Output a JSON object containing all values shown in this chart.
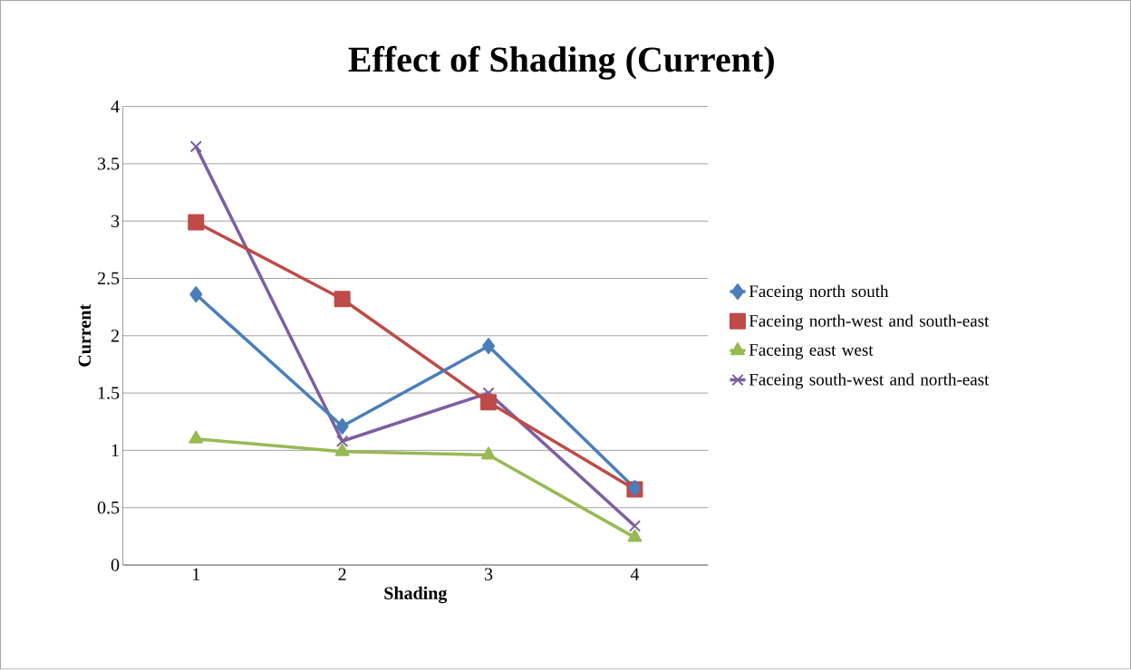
{
  "chart_data": {
    "type": "line",
    "title": "Effect of Shading (Current)",
    "xlabel": "Shading",
    "ylabel": "Current",
    "categories": [
      "1",
      "2",
      "3",
      "4"
    ],
    "series": [
      {
        "name": "Faceing north south",
        "color": "#4a7ebb",
        "marker": "diamond",
        "values": [
          2.36,
          1.21,
          1.91,
          0.67
        ]
      },
      {
        "name": "Faceing north-west and south-east",
        "color": "#be4b48",
        "marker": "square",
        "values": [
          2.99,
          2.32,
          1.42,
          0.66
        ]
      },
      {
        "name": "Faceing east west",
        "color": "#98b954",
        "marker": "triangle",
        "values": [
          1.1,
          0.99,
          0.96,
          0.24
        ]
      },
      {
        "name": "Faceing south-west and north-east",
        "color": "#7d5fa0",
        "marker": "cross",
        "values": [
          3.65,
          1.08,
          1.5,
          0.34
        ]
      }
    ],
    "ylim": [
      0,
      4
    ],
    "yticks": [
      0,
      0.5,
      1,
      1.5,
      2,
      2.5,
      3,
      3.5,
      4
    ],
    "grid": "y",
    "legend": "right"
  }
}
